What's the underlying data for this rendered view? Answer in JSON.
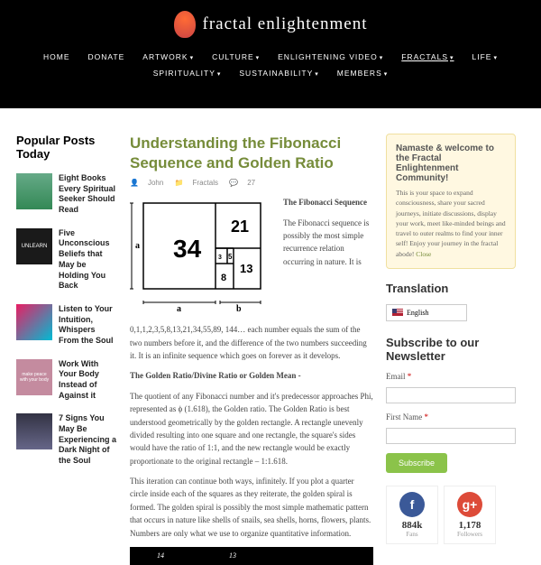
{
  "logo": {
    "text": "fractal enlightenment"
  },
  "nav": {
    "items": [
      "HOME",
      "DONATE",
      "ARTWORK",
      "CULTURE",
      "ENLIGHTENING VIDEO",
      "FRACTALS",
      "LIFE",
      "SPIRITUALITY",
      "SUSTAINABILITY",
      "MEMBERS"
    ],
    "active_index": 5,
    "dropdown_indices": [
      2,
      3,
      4,
      5,
      6,
      7,
      8,
      9
    ]
  },
  "popular": {
    "heading": "Popular Posts Today",
    "items": [
      {
        "title": "Eight Books Every Spiritual Seeker Should Read",
        "thumb_bg": "linear-gradient(#6a8, #385)"
      },
      {
        "title": "Five Unconscious Beliefs that May be Holding You Back",
        "thumb_bg": "#1a1a1a",
        "thumb_text": "UNLEARN",
        "thumb_color": "#fff"
      },
      {
        "title": "Listen to Your Intuition, Whispers From the Soul",
        "thumb_bg": "linear-gradient(135deg,#e91e63,#00bcd4)"
      },
      {
        "title": "Work With Your Body Instead of Against it",
        "thumb_bg": "#c48b9f",
        "thumb_text": "make peace with your body",
        "thumb_color": "#fff",
        "thumb_fs": "5px"
      },
      {
        "title": "7 Signs You May Be Experiencing a Dark Night of the Soul",
        "thumb_bg": "linear-gradient(#334,#668)"
      }
    ]
  },
  "article": {
    "title": "Understanding the Fibonacci Sequence and Golden Ratio",
    "author": "John",
    "category": "Fractals",
    "comments": "27",
    "fib_numbers": {
      "big": "34",
      "n21": "21",
      "n13": "13",
      "n8": "8",
      "n5": "5",
      "n3": "3"
    },
    "h1": "The Fibonacci Sequence",
    "p1": "The Fibonacci sequence is possibly the most simple recurrence relation occurring in nature. It is",
    "p2": "0,1,1,2,3,5,8,13,21,34,55,89, 144… each number equals the sum of the two numbers before it, and the difference of the two numbers succeeding it. It is an infinite sequence which goes on forever as it develops.",
    "h2": "The Golden Ratio/Divine Ratio or Golden Mean -",
    "p3": "The quotient of any Fibonacci number and it's predecessor approaches Phi, represented as ϕ (1.618), the Golden ratio. The Golden Ratio is best understood geometrically by the golden rectangle. A rectangle unevenly divided resulting into one square and one rectangle, the square's sides would have the ratio of 1:1, and the new rectangle would be exactly proportionate to the original rectangle – 1:1.618.",
    "p4": "This iteration can continue both ways, infinitely. If you plot a quarter circle inside each of the squares as they reiterate, the golden spiral is formed. The golden spiral is possibly the most simple mathematic pattern that occurs in nature like shells of snails, sea shells, horns, flowers, plants. Numbers are only what we use to organize quantitative information.",
    "bottom_nums": {
      "n14": "14",
      "n13": "13"
    }
  },
  "welcome": {
    "heading": "Namaste & welcome to the Fractal Enlightenment Community!",
    "text": "This is your space to expand consciousness, share your sacred journeys, initiate discussions, display your work, meet like-minded beings and travel to outer realms to find your inner self! Enjoy your journey in the fractal abode! ",
    "close": "Close"
  },
  "translation": {
    "heading": "Translation",
    "lang": "English"
  },
  "newsletter": {
    "heading": "Subscribe to our Newsletter",
    "email_label": "Email",
    "fname_label": "First Name",
    "button": "Subscribe"
  },
  "social": {
    "fb": {
      "count": "884k",
      "label": "Fans",
      "bg": "#3b5998",
      "glyph": "f"
    },
    "gp": {
      "count": "1,178",
      "label": "Followers",
      "bg": "#dd4b39",
      "glyph": "g+"
    }
  },
  "colors": {
    "accent": "#768c3a",
    "nav_bg": "#000000",
    "welcome_bg": "#fff8e1",
    "subscribe_bg": "#8bc34a"
  }
}
